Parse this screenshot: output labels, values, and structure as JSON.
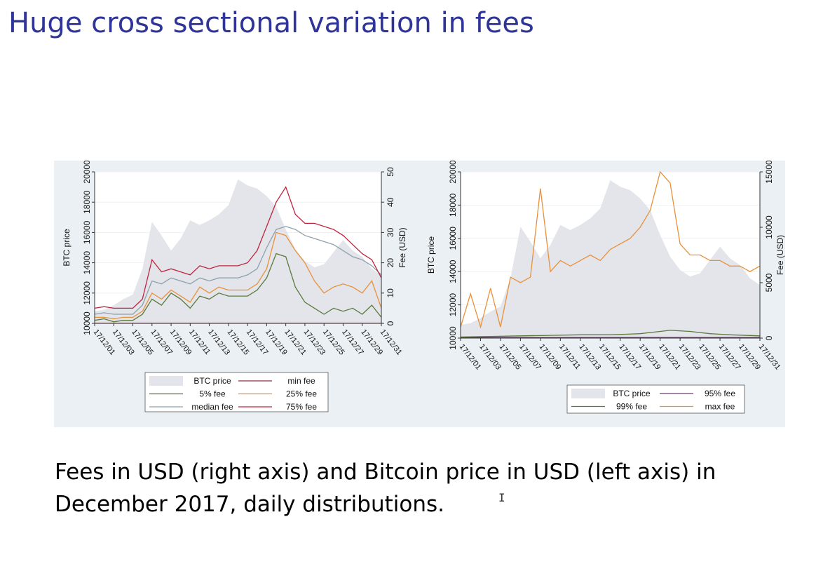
{
  "slide": {
    "title": "Huge cross sectional variation in fees",
    "caption": "Fees in USD (right axis) and Bitcoin price in USD (left axis) in December 2017, daily distributions."
  },
  "chart_data": [
    {
      "type": "line",
      "title": "",
      "ylabel_left": "BTC price",
      "ylabel_right": "Fee (USD)",
      "xlabel": "",
      "y_left": {
        "ticks": [
          "10000",
          "12000",
          "14000",
          "16000",
          "18000",
          "20000"
        ],
        "lim": [
          10000,
          20000
        ]
      },
      "y_right": {
        "ticks": [
          "0",
          "10",
          "20",
          "30",
          "40",
          "50"
        ],
        "lim": [
          0,
          50
        ]
      },
      "x_ticks": [
        "17/12/01",
        "17/12/03",
        "17/12/05",
        "17/12/07",
        "17/12/09",
        "17/12/11",
        "17/12/13",
        "17/12/15",
        "17/12/17",
        "17/12/19",
        "17/12/21",
        "17/12/23",
        "17/12/25",
        "17/12/27",
        "17/12/29",
        "17/12/31"
      ],
      "x_range": [
        1,
        31
      ],
      "btc_price": {
        "name": "BTC price",
        "color": "#e3e5ea",
        "x": [
          1,
          2,
          3,
          4,
          5,
          6,
          7,
          8,
          9,
          10,
          11,
          12,
          13,
          14,
          15,
          16,
          17,
          18,
          19,
          20,
          21,
          22,
          23,
          24,
          25,
          26,
          27,
          28,
          29,
          30,
          31
        ],
        "values": [
          10800,
          10900,
          11200,
          11600,
          11900,
          13600,
          16700,
          15800,
          14800,
          15600,
          16800,
          16500,
          16800,
          17200,
          17800,
          19500,
          19100,
          18900,
          18400,
          17700,
          16200,
          14900,
          14100,
          13700,
          13900,
          14700,
          15500,
          14800,
          14400,
          13600,
          13200
        ]
      },
      "series": [
        {
          "name": "min fee",
          "color": "#8c2d3f",
          "x": [
            1,
            31
          ],
          "values": [
            0.02,
            0.02
          ]
        },
        {
          "name": "5% fee",
          "color": "#5b7a3c",
          "x": [
            1,
            2,
            3,
            4,
            5,
            6,
            7,
            8,
            9,
            10,
            11,
            12,
            13,
            14,
            15,
            16,
            17,
            18,
            19,
            20,
            21,
            22,
            23,
            24,
            25,
            26,
            27,
            28,
            29,
            30,
            31
          ],
          "values": [
            1,
            1.5,
            0.5,
            1,
            1,
            3,
            8,
            6,
            10,
            8,
            5,
            9,
            8,
            10,
            9,
            9,
            9,
            11,
            15,
            23,
            22,
            12,
            7,
            5,
            3,
            5,
            4,
            5,
            3,
            6,
            2
          ]
        },
        {
          "name": "25% fee",
          "color": "#e8913a",
          "x": [
            1,
            2,
            3,
            4,
            5,
            6,
            7,
            8,
            9,
            10,
            11,
            12,
            13,
            14,
            15,
            16,
            17,
            18,
            19,
            20,
            21,
            22,
            23,
            24,
            25,
            26,
            27,
            28,
            29,
            30,
            31
          ],
          "values": [
            2,
            2,
            1.5,
            2,
            2,
            4,
            10,
            8,
            11,
            9,
            7,
            12,
            10,
            12,
            11,
            11,
            11,
            13,
            18,
            30,
            29,
            24,
            20,
            14,
            10,
            12,
            13,
            12,
            10,
            14,
            5
          ]
        },
        {
          "name": "median fee",
          "color": "#8da1ad",
          "x": [
            1,
            2,
            3,
            4,
            5,
            6,
            7,
            8,
            9,
            10,
            11,
            12,
            13,
            14,
            15,
            16,
            17,
            18,
            19,
            20,
            21,
            22,
            23,
            24,
            25,
            26,
            27,
            28,
            29,
            30,
            31
          ],
          "values": [
            3,
            3.5,
            3,
            3,
            3,
            6,
            14,
            13,
            15,
            14,
            13,
            15,
            14,
            15,
            15,
            15,
            16,
            18,
            25,
            31,
            32,
            31,
            29,
            28,
            27,
            26,
            24,
            22,
            21,
            19,
            16
          ]
        },
        {
          "name": "75% fee",
          "color": "#c0243f",
          "x": [
            1,
            2,
            3,
            4,
            5,
            6,
            7,
            8,
            9,
            10,
            11,
            12,
            13,
            14,
            15,
            16,
            17,
            18,
            19,
            20,
            21,
            22,
            23,
            24,
            25,
            26,
            27,
            28,
            29,
            30,
            31
          ],
          "values": [
            5,
            5.5,
            5,
            5,
            5,
            8,
            21,
            17,
            18,
            17,
            16,
            19,
            18,
            19,
            19,
            19,
            20,
            24,
            32,
            40,
            45,
            36,
            33,
            33,
            32,
            31,
            29,
            26,
            23,
            21,
            15
          ]
        }
      ],
      "legend": {
        "placement": "bottom",
        "columns": 2,
        "order": [
          "BTC price",
          "min fee",
          "5% fee",
          "25% fee",
          "median fee",
          "75% fee"
        ]
      }
    },
    {
      "type": "line",
      "title": "",
      "ylabel_left": "BTC price",
      "ylabel_right": "Fee (USD)",
      "xlabel": "",
      "y_left": {
        "ticks": [
          "10000",
          "12000",
          "14000",
          "16000",
          "18000",
          "20000"
        ],
        "lim": [
          10000,
          20000
        ]
      },
      "y_right": {
        "ticks": [
          "0",
          "5000",
          "10000",
          "15000"
        ],
        "lim": [
          0,
          15000
        ]
      },
      "x_ticks": [
        "17/12/01",
        "17/12/03",
        "17/12/05",
        "17/12/07",
        "17/12/09",
        "17/12/11",
        "17/12/13",
        "17/12/15",
        "17/12/17",
        "17/12/19",
        "17/12/21",
        "17/12/23",
        "17/12/25",
        "17/12/27",
        "17/12/29",
        "17/12/31"
      ],
      "x_range": [
        1,
        31
      ],
      "btc_price": {
        "name": "BTC price",
        "color": "#e3e5ea",
        "x": [
          1,
          2,
          3,
          4,
          5,
          6,
          7,
          8,
          9,
          10,
          11,
          12,
          13,
          14,
          15,
          16,
          17,
          18,
          19,
          20,
          21,
          22,
          23,
          24,
          25,
          26,
          27,
          28,
          29,
          30,
          31
        ],
        "values": [
          10800,
          10900,
          11200,
          11600,
          11900,
          13600,
          16700,
          15800,
          14800,
          15600,
          16800,
          16500,
          16800,
          17200,
          17800,
          19500,
          19100,
          18900,
          18400,
          17700,
          16200,
          14900,
          14100,
          13700,
          13900,
          14700,
          15500,
          14800,
          14400,
          13600,
          13200
        ]
      },
      "series": [
        {
          "name": "95% fee",
          "color": "#6b3a6e",
          "x": [
            1,
            31
          ],
          "values": [
            60,
            60
          ]
        },
        {
          "name": "99% fee",
          "color": "#5b7a3c",
          "x": [
            1,
            4,
            7,
            10,
            13,
            16,
            19,
            21,
            22,
            24,
            26,
            28,
            31
          ],
          "values": [
            100,
            150,
            200,
            250,
            300,
            300,
            400,
            600,
            700,
            600,
            400,
            300,
            200
          ]
        },
        {
          "name": "max fee",
          "color": "#e8913a",
          "x": [
            1,
            2,
            3,
            4,
            5,
            6,
            7,
            8,
            9,
            10,
            11,
            12,
            13,
            14,
            15,
            16,
            17,
            18,
            19,
            20,
            21,
            22,
            23,
            24,
            25,
            26,
            27,
            28,
            29,
            30,
            31
          ],
          "values": [
            1000,
            4000,
            1000,
            4500,
            1000,
            5500,
            5000,
            5500,
            13500,
            6000,
            7000,
            6500,
            7000,
            7500,
            7000,
            8000,
            8500,
            9000,
            10000,
            11500,
            15000,
            14000,
            8500,
            7500,
            7500,
            7000,
            7000,
            6500,
            6500,
            6000,
            6500
          ]
        }
      ],
      "legend": {
        "placement": "bottom",
        "columns": 2,
        "order": [
          "BTC price",
          "95% fee",
          "99% fee",
          "max fee"
        ]
      }
    }
  ]
}
